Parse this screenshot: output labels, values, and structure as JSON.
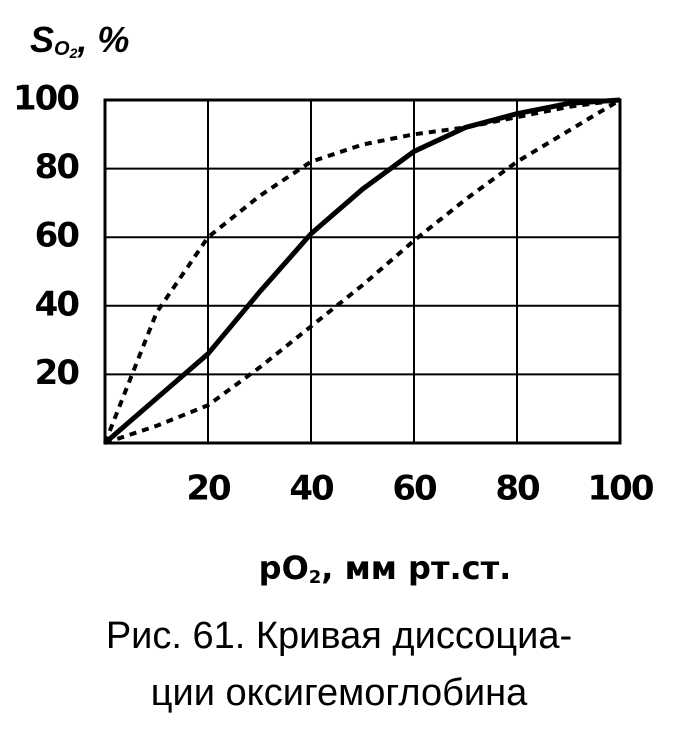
{
  "chart_data": {
    "type": "line",
    "ylabel": [
      "S",
      "O",
      "2",
      ", %"
    ],
    "xlabel": [
      "pO",
      "2",
      ", мм рт.ст."
    ],
    "caption": [
      "Рис. 61. Кривая диссоциа-",
      "ции оксигемоглобина"
    ],
    "x": [
      0,
      10,
      20,
      30,
      40,
      50,
      60,
      70,
      80,
      90,
      100
    ],
    "series": [
      {
        "color": "#000000",
        "dash": "dashed",
        "values": [
          0,
          38,
          60,
          72,
          82,
          87,
          90,
          92,
          95,
          98,
          100
        ]
      },
      {
        "color": "#000000",
        "dash": "solid",
        "values": [
          0,
          13,
          26,
          44,
          61,
          74,
          85,
          92,
          96,
          99,
          100
        ]
      },
      {
        "color": "#000000",
        "dash": "dashed",
        "values": [
          0,
          5,
          11,
          22,
          34,
          46,
          59,
          71,
          82,
          91,
          100
        ]
      }
    ],
    "xlim": [
      0,
      100
    ],
    "xticks": [
      20,
      40,
      60,
      80,
      100
    ],
    "ylim": [
      0,
      100
    ],
    "yticks": [
      20,
      40,
      60,
      80,
      100
    ],
    "grid": true
  }
}
